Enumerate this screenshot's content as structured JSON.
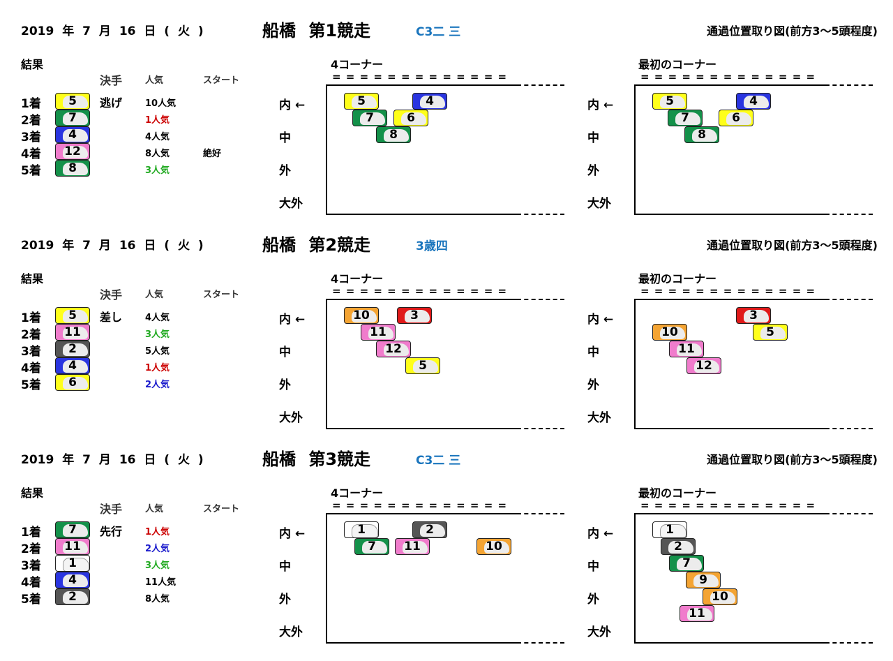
{
  "colors": {
    "white": "#ffffff",
    "black": "#555555",
    "red": "#e01a1a",
    "blue": "#2a35e0",
    "yellow": "#ffff1a",
    "green": "#14914a",
    "orange": "#f4a433",
    "pink": "#f07ccc",
    "pop_red": "#cc0000",
    "pop_green": "#22aa22",
    "pop_blue": "#1a1acc",
    "pop_black": "#000000"
  },
  "labels": {
    "result": "結果",
    "col_kimete": "決手",
    "col_pop": "人気",
    "col_start": "スタート",
    "corner4": "4コーナー",
    "corner_first": "最初のコーナー",
    "equals_row": "= = = = = = = = = = = = =",
    "passing_header": "通過位置取り図(前方3～5頭程度)",
    "lane_inner": "内 ←",
    "lane_mid": "中",
    "lane_outer": "外",
    "lane_far": "大外"
  },
  "races": [
    {
      "date": "2019 年 7 月 16 日 ( 火 )",
      "title": "船橋 第1競走",
      "class": "C3二 三",
      "results": [
        {
          "pos": "1着",
          "num": "5",
          "color": "yellow",
          "style": "逃げ",
          "pop": "10人気",
          "pop_color": "pop_black",
          "start": ""
        },
        {
          "pos": "2着",
          "num": "7",
          "color": "green",
          "style": "",
          "pop": "1人気",
          "pop_color": "pop_red",
          "start": ""
        },
        {
          "pos": "3着",
          "num": "4",
          "color": "blue",
          "style": "",
          "pop": "4人気",
          "pop_color": "pop_black",
          "start": ""
        },
        {
          "pos": "4着",
          "num": "12",
          "color": "pink",
          "style": "",
          "pop": "8人気",
          "pop_color": "pop_black",
          "start": "絶好"
        },
        {
          "pos": "5着",
          "num": "8",
          "color": "green",
          "style": "",
          "pop": "3人気",
          "pop_color": "pop_green",
          "start": ""
        }
      ],
      "corner4": [
        {
          "num": "5",
          "color": "yellow",
          "col": 0,
          "row": 0
        },
        {
          "num": "4",
          "color": "blue",
          "col": 4,
          "row": 0
        },
        {
          "num": "7",
          "color": "green",
          "col": 0.5,
          "row": 1
        },
        {
          "num": "6",
          "color": "yellow",
          "col": 2.9,
          "row": 1
        },
        {
          "num": "8",
          "color": "green",
          "col": 1.9,
          "row": 2
        }
      ],
      "corner1": [
        {
          "num": "5",
          "color": "yellow",
          "col": 0,
          "row": 0
        },
        {
          "num": "4",
          "color": "blue",
          "col": 4.9,
          "row": 0
        },
        {
          "num": "7",
          "color": "green",
          "col": 0.9,
          "row": 1
        },
        {
          "num": "6",
          "color": "yellow",
          "col": 3.9,
          "row": 1
        },
        {
          "num": "8",
          "color": "green",
          "col": 1.9,
          "row": 2
        }
      ]
    },
    {
      "date": "2019 年 7 月 16 日 ( 火 )",
      "title": "船橋 第2競走",
      "class": "3歳四",
      "results": [
        {
          "pos": "1着",
          "num": "5",
          "color": "yellow",
          "style": "差し",
          "pop": "4人気",
          "pop_color": "pop_black",
          "start": ""
        },
        {
          "pos": "2着",
          "num": "11",
          "color": "pink",
          "style": "",
          "pop": "3人気",
          "pop_color": "pop_green",
          "start": ""
        },
        {
          "pos": "3着",
          "num": "2",
          "color": "black",
          "style": "",
          "pop": "5人気",
          "pop_color": "pop_black",
          "start": ""
        },
        {
          "pos": "4着",
          "num": "4",
          "color": "blue",
          "style": "",
          "pop": "1人気",
          "pop_color": "pop_red",
          "start": ""
        },
        {
          "pos": "5着",
          "num": "6",
          "color": "yellow",
          "style": "",
          "pop": "2人気",
          "pop_color": "pop_blue",
          "start": ""
        }
      ],
      "corner4": [
        {
          "num": "10",
          "color": "orange",
          "col": 0,
          "row": 0
        },
        {
          "num": "3",
          "color": "red",
          "col": 3.1,
          "row": 0
        },
        {
          "num": "11",
          "color": "pink",
          "col": 1,
          "row": 1
        },
        {
          "num": "12",
          "color": "pink",
          "col": 1.9,
          "row": 2
        },
        {
          "num": "5",
          "color": "yellow",
          "col": 3.6,
          "row": 3
        }
      ],
      "corner1": [
        {
          "num": "3",
          "color": "red",
          "col": 4.9,
          "row": 0
        },
        {
          "num": "10",
          "color": "orange",
          "col": 0,
          "row": 1
        },
        {
          "num": "5",
          "color": "yellow",
          "col": 5.9,
          "row": 1
        },
        {
          "num": "11",
          "color": "pink",
          "col": 1,
          "row": 2
        },
        {
          "num": "12",
          "color": "pink",
          "col": 2,
          "row": 3
        }
      ]
    },
    {
      "date": "2019 年 7 月 16 日 ( 火 )",
      "title": "船橋 第3競走",
      "class": "C3二 三",
      "results": [
        {
          "pos": "1着",
          "num": "7",
          "color": "green",
          "style": "先行",
          "pop": "1人気",
          "pop_color": "pop_red",
          "start": ""
        },
        {
          "pos": "2着",
          "num": "11",
          "color": "pink",
          "style": "",
          "pop": "2人気",
          "pop_color": "pop_blue",
          "start": ""
        },
        {
          "pos": "3着",
          "num": "1",
          "color": "white",
          "style": "",
          "pop": "3人気",
          "pop_color": "pop_green",
          "start": ""
        },
        {
          "pos": "4着",
          "num": "4",
          "color": "blue",
          "style": "",
          "pop": "11人気",
          "pop_color": "pop_black",
          "start": ""
        },
        {
          "pos": "5着",
          "num": "2",
          "color": "black",
          "style": "",
          "pop": "8人気",
          "pop_color": "pop_black",
          "start": ""
        }
      ],
      "corner4": [
        {
          "num": "1",
          "color": "white",
          "col": 0,
          "row": 0
        },
        {
          "num": "2",
          "color": "black",
          "col": 4,
          "row": 0
        },
        {
          "num": "7",
          "color": "green",
          "col": 0.6,
          "row": 1
        },
        {
          "num": "11",
          "color": "pink",
          "col": 3,
          "row": 1
        },
        {
          "num": "10",
          "color": "orange",
          "col": 7.8,
          "row": 1
        }
      ],
      "corner1": [
        {
          "num": "1",
          "color": "white",
          "col": 0,
          "row": 0
        },
        {
          "num": "2",
          "color": "black",
          "col": 0.5,
          "row": 1
        },
        {
          "num": "7",
          "color": "green",
          "col": 1,
          "row": 2
        },
        {
          "num": "9",
          "color": "orange",
          "col": 1.95,
          "row": 3
        },
        {
          "num": "10",
          "color": "orange",
          "col": 2.95,
          "row": 4
        },
        {
          "num": "11",
          "color": "pink",
          "col": 1.6,
          "row": 5
        }
      ]
    }
  ]
}
